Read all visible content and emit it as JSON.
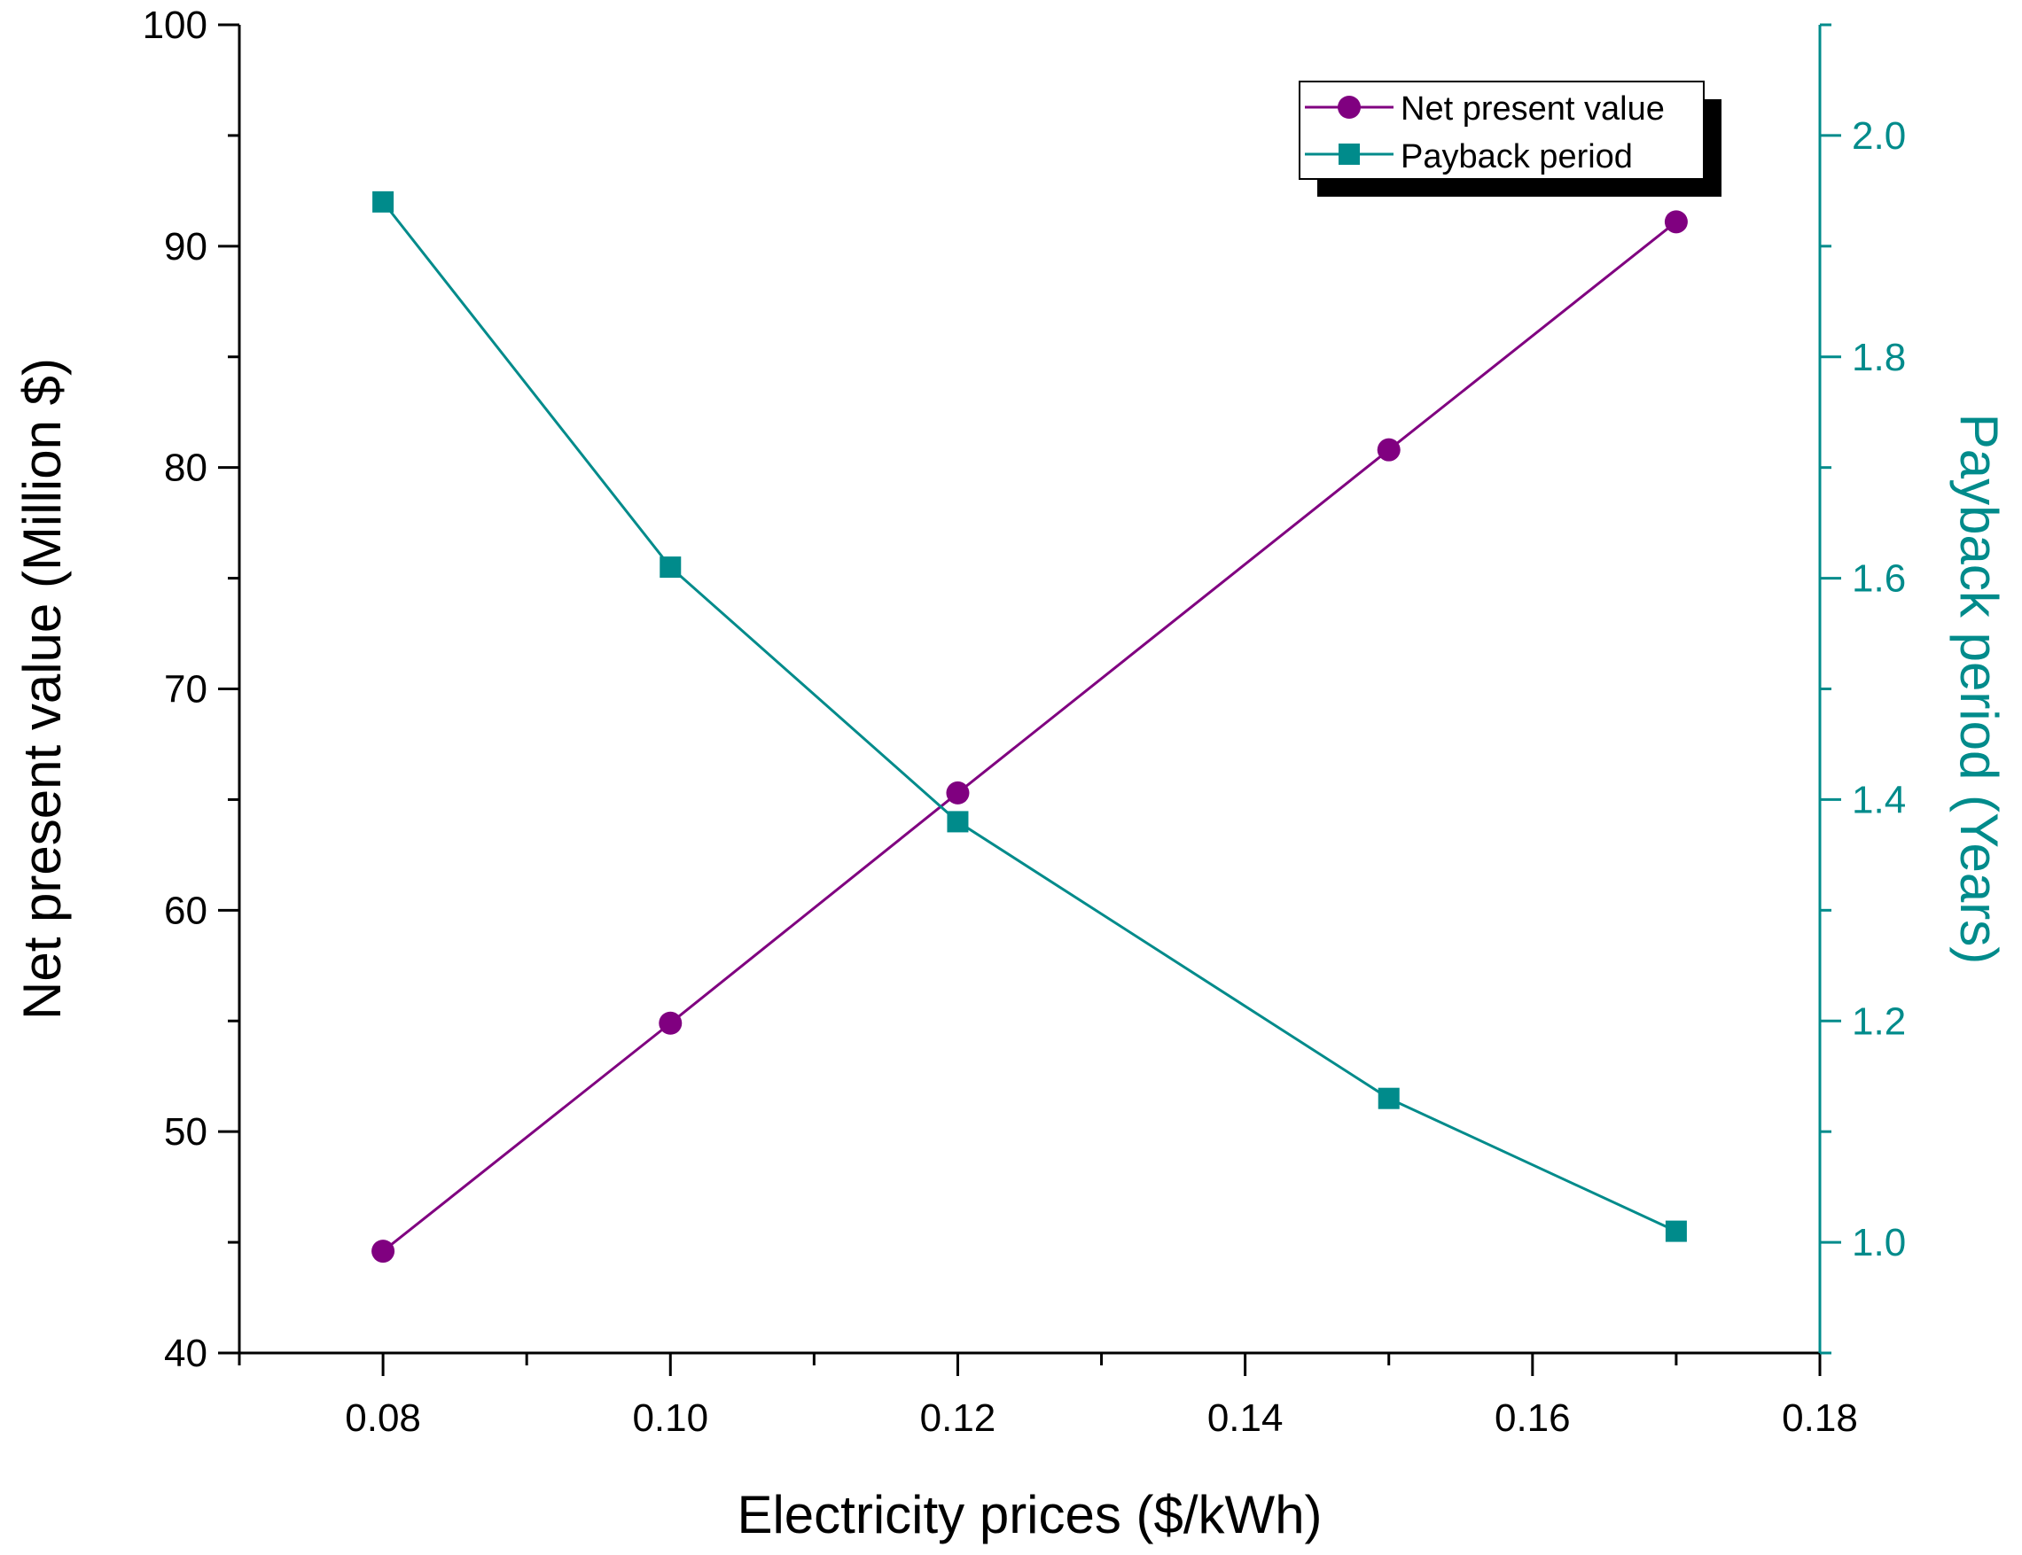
{
  "chart_data": {
    "type": "line",
    "title": "",
    "xlabel": "Electricity prices ($/kWh)",
    "ylabel": "Net present value (Million $)",
    "y2label": "Payback period (Years)",
    "xlim": [
      0.07,
      0.18
    ],
    "ylim": [
      40,
      100
    ],
    "y2lim": [
      0.9,
      2.1
    ],
    "x_ticks": [
      "0.08",
      "0.10",
      "0.12",
      "0.14",
      "0.16",
      "0.18"
    ],
    "y_ticks": [
      "40",
      "50",
      "60",
      "70",
      "80",
      "90",
      "100"
    ],
    "y2_ticks": [
      "1.0",
      "1.2",
      "1.4",
      "1.6",
      "1.8",
      "2.0"
    ],
    "legend_position": "top-right",
    "grid": false,
    "x": [
      0.08,
      0.1,
      0.12,
      0.15,
      0.17
    ],
    "series": [
      {
        "name": "Net present value",
        "axis": "left",
        "marker": "circle",
        "color": "#800080",
        "values": [
          44.6,
          54.9,
          65.3,
          80.8,
          91.1
        ]
      },
      {
        "name": "Payback period",
        "axis": "right",
        "marker": "square",
        "color": "#008B8B",
        "values": [
          1.94,
          1.61,
          1.38,
          1.13,
          1.01
        ]
      }
    ]
  }
}
